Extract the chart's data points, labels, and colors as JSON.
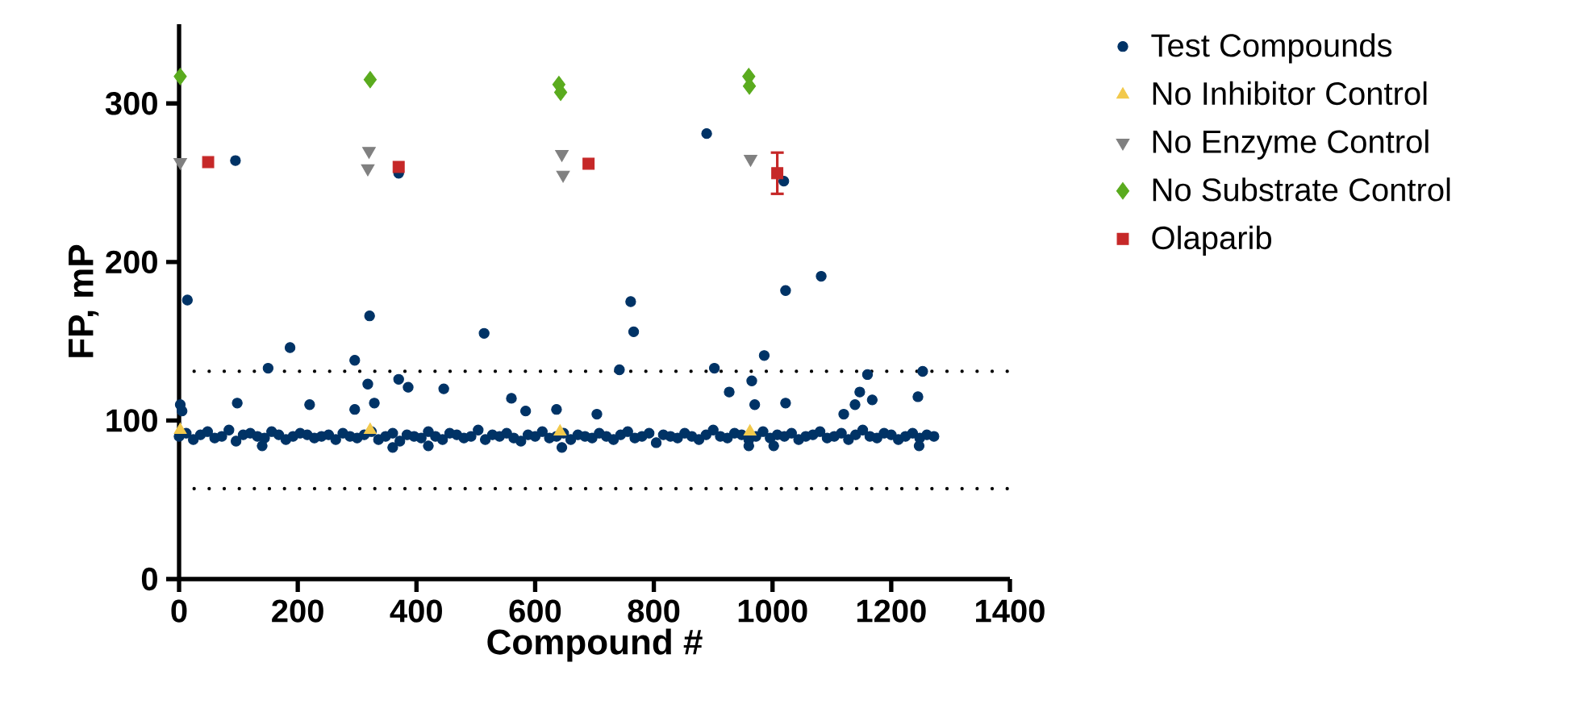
{
  "chart_data": {
    "type": "scatter",
    "xlabel": "Compound #",
    "ylabel": "FP, mP",
    "xlim": [
      0,
      1400
    ],
    "ylim": [
      0,
      350
    ],
    "xticks": [
      0,
      200,
      400,
      600,
      800,
      1000,
      1200,
      1400
    ],
    "yticks": [
      0,
      100,
      200,
      300
    ],
    "grid": false,
    "legend": "right",
    "ref_lines": [
      {
        "axis": "y",
        "value": 131,
        "color": "#000000",
        "line_style": "dotted"
      },
      {
        "axis": "y",
        "value": 57,
        "color": "#000000",
        "line_style": "dotted"
      }
    ],
    "series": [
      {
        "name": "Test Compounds",
        "color": "#003366",
        "marker": "circle",
        "x": [
          0,
          12,
          24,
          36,
          48,
          60,
          72,
          84,
          96,
          108,
          120,
          132,
          144,
          156,
          168,
          180,
          192,
          204,
          216,
          228,
          240,
          252,
          264,
          276,
          288,
          300,
          312,
          324,
          336,
          348,
          360,
          372,
          384,
          396,
          408,
          420,
          432,
          444,
          456,
          468,
          480,
          492,
          504,
          516,
          528,
          540,
          552,
          564,
          576,
          588,
          600,
          612,
          624,
          636,
          648,
          660,
          672,
          684,
          696,
          708,
          720,
          732,
          744,
          756,
          768,
          780,
          792,
          804,
          816,
          828,
          840,
          852,
          864,
          876,
          888,
          900,
          912,
          924,
          936,
          948,
          960,
          972,
          984,
          996,
          1008,
          1020,
          1032,
          1044,
          1056,
          1068,
          1080,
          1092,
          1104,
          1116,
          1128,
          1140,
          1152,
          1164,
          1176,
          1188,
          1200,
          1212,
          1224,
          1236,
          1248,
          1260,
          1272,
          5,
          14,
          95,
          2,
          98,
          150,
          187,
          220,
          296,
          321,
          318,
          329,
          370,
          386,
          446,
          370,
          296,
          514,
          560,
          584,
          636,
          704,
          742,
          761,
          766,
          889,
          1019,
          1022,
          1082,
          902,
          927,
          965,
          970,
          986,
          1022,
          1160,
          1147,
          1168,
          1139,
          1253,
          1245,
          1120,
          140,
          360,
          420,
          645,
          960,
          1002,
          1247
        ],
        "values": [
          90,
          92,
          88,
          91,
          93,
          89,
          90,
          94,
          87,
          91,
          92,
          90,
          89,
          93,
          91,
          88,
          90,
          92,
          91,
          89,
          90,
          91,
          88,
          92,
          90,
          89,
          91,
          93,
          88,
          90,
          92,
          87,
          91,
          90,
          89,
          93,
          90,
          88,
          92,
          91,
          89,
          90,
          94,
          88,
          91,
          90,
          92,
          89,
          87,
          91,
          90,
          93,
          89,
          90,
          92,
          88,
          91,
          90,
          89,
          92,
          90,
          88,
          91,
          93,
          89,
          90,
          92,
          86,
          91,
          90,
          89,
          92,
          90,
          88,
          91,
          94,
          90,
          89,
          92,
          91,
          88,
          90,
          93,
          89,
          91,
          90,
          92,
          88,
          90,
          91,
          93,
          89,
          90,
          92,
          88,
          91,
          94,
          90,
          89,
          92,
          91,
          88,
          90,
          92,
          89,
          91,
          90,
          106,
          176,
          264,
          110,
          111,
          133,
          146,
          110,
          138,
          166,
          123,
          111,
          126,
          121,
          120,
          256,
          107,
          155,
          114,
          106,
          107,
          104,
          132,
          175,
          156,
          281,
          251,
          182,
          191,
          133,
          118,
          125,
          110,
          141,
          111,
          129,
          118,
          113,
          110,
          131,
          115,
          104,
          84,
          83,
          84,
          83,
          84,
          84,
          84
        ]
      },
      {
        "name": "No Inhibitor Control",
        "color": "#f2c94c",
        "marker": "triangle",
        "x": [
          2,
          322,
          642,
          962
        ],
        "values": [
          94,
          94,
          93,
          93
        ]
      },
      {
        "name": "No Enzyme Control",
        "color": "#808080",
        "marker": "triangle-down",
        "x": [
          2,
          320,
          318,
          645,
          647,
          963
        ],
        "values": [
          263,
          270,
          259,
          268,
          255,
          265
        ]
      },
      {
        "name": "No Substrate Control",
        "color": "#5aab1e",
        "marker": "diamond",
        "x": [
          2,
          322,
          640,
          643,
          960,
          961
        ],
        "values": [
          317,
          315,
          312,
          307,
          317,
          311
        ]
      },
      {
        "name": "Olaparib",
        "color": "#c62828",
        "marker": "square",
        "x": [
          49,
          370,
          690,
          1008
        ],
        "values": [
          263,
          260,
          262,
          256
        ],
        "errors": [
          null,
          null,
          null,
          [
            243,
            269
          ]
        ]
      }
    ]
  }
}
